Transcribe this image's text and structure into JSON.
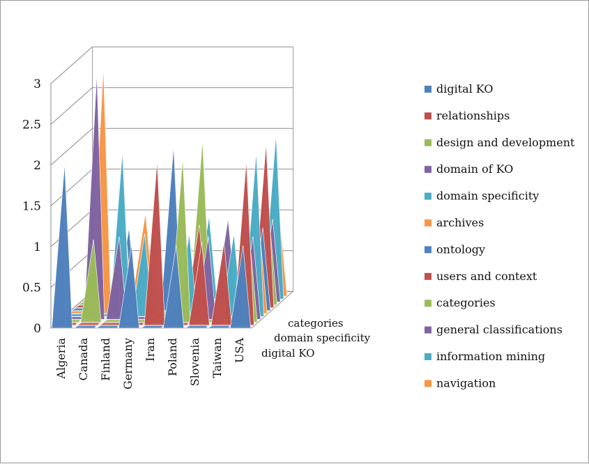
{
  "chart_data": {
    "type": "3d-pyramid-column",
    "title": "",
    "xlabel": "",
    "ylabel": "",
    "ylim": [
      0,
      3
    ],
    "yticks": [
      "0",
      "0.5",
      "1",
      "1.5",
      "2",
      "2.5",
      "3"
    ],
    "categories": [
      "Algeria",
      "Canada",
      "Finland",
      "Germany",
      "Iran",
      "Poland",
      "Slovenia",
      "Taiwan",
      "USA"
    ],
    "depth_axis_labels": [
      "categories",
      "domain specificity",
      "digital KO"
    ],
    "grid": true,
    "legend_position": "right",
    "series": [
      {
        "name": "digital KO",
        "color": "#4f81bd",
        "values": [
          2,
          0,
          0,
          1,
          0,
          1,
          0,
          0,
          1
        ]
      },
      {
        "name": "relationships",
        "color": "#c0504d",
        "values": [
          0,
          0,
          0,
          0,
          2,
          0,
          1,
          1,
          2
        ]
      },
      {
        "name": "design and development",
        "color": "#9bbb59",
        "values": [
          0,
          1,
          0,
          0,
          0,
          2,
          0,
          0,
          1
        ]
      },
      {
        "name": "domain of KO",
        "color": "#8064a2",
        "values": [
          0,
          3,
          1,
          0,
          0,
          0,
          1,
          0,
          1
        ]
      },
      {
        "name": "domain specificity",
        "color": "#4bacc6",
        "values": [
          0,
          0,
          2,
          1,
          0,
          1,
          0,
          1,
          2
        ]
      },
      {
        "name": "archives",
        "color": "#f79646",
        "values": [
          0,
          3,
          1,
          0,
          0,
          0,
          0,
          0,
          1
        ]
      },
      {
        "name": "ontology",
        "color": "#4f81bd",
        "values": [
          0,
          0,
          1,
          0,
          2,
          0,
          0,
          0,
          1
        ]
      },
      {
        "name": "users and context",
        "color": "#c0504d",
        "values": [
          0,
          0,
          0,
          0,
          0,
          1,
          0,
          0,
          2
        ]
      },
      {
        "name": "categories",
        "color": "#9bbb59",
        "values": [
          0,
          0,
          0,
          0,
          0,
          2,
          0,
          1,
          1
        ]
      },
      {
        "name": "general classifications",
        "color": "#8064a2",
        "values": [
          0,
          0,
          0,
          0,
          0,
          0,
          1,
          0,
          1
        ]
      },
      {
        "name": "information mining",
        "color": "#4bacc6",
        "values": [
          0,
          0,
          0,
          0,
          0,
          1,
          0,
          1,
          2
        ]
      },
      {
        "name": "navigation",
        "color": "#f79646",
        "values": [
          0,
          0,
          1,
          0,
          0,
          0,
          0,
          0,
          1
        ]
      }
    ]
  }
}
